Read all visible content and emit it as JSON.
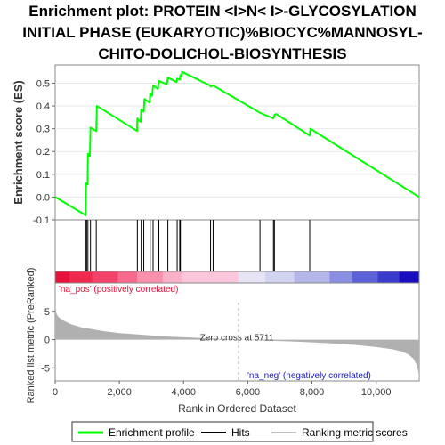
{
  "title_lines": [
    "Enrichment plot: PROTEIN <I>N< I>-GLYCOSYLATION",
    "INITIAL PHASE (EUKARYOTIC)%BIOCYC%MANNOSYL-",
    "CHITO-DOLICHOL-BIOSYNTHESIS"
  ],
  "chart_data": {
    "type": "line",
    "x_total": 11340,
    "es_panel": {
      "ylabel": "Enrichment score (ES)",
      "ylim": [
        -0.1,
        0.58
      ],
      "yticks": [
        -0.1,
        0.0,
        0.1,
        0.2,
        0.3,
        0.4,
        0.5
      ],
      "ytick_labels": [
        "-0.1",
        "0.0",
        "0.1",
        "0.2",
        "0.3",
        "0.4",
        "0.5"
      ],
      "line_color": "#00ff00",
      "points": [
        [
          0,
          0.0
        ],
        [
          950,
          -0.08
        ],
        [
          960,
          0.06
        ],
        [
          1010,
          0.055
        ],
        [
          1020,
          0.19
        ],
        [
          1080,
          0.18
        ],
        [
          1100,
          0.305
        ],
        [
          1280,
          0.29
        ],
        [
          1300,
          0.4
        ],
        [
          2550,
          0.29
        ],
        [
          2560,
          0.345
        ],
        [
          2660,
          0.33
        ],
        [
          2680,
          0.385
        ],
        [
          2760,
          0.375
        ],
        [
          2780,
          0.43
        ],
        [
          2940,
          0.415
        ],
        [
          2960,
          0.455
        ],
        [
          3020,
          0.445
        ],
        [
          3050,
          0.49
        ],
        [
          3200,
          0.475
        ],
        [
          3230,
          0.51
        ],
        [
          3480,
          0.495
        ],
        [
          3510,
          0.525
        ],
        [
          3780,
          0.505
        ],
        [
          3800,
          0.52
        ],
        [
          3880,
          0.515
        ],
        [
          3900,
          0.535
        ],
        [
          3930,
          0.53
        ],
        [
          3950,
          0.55
        ],
        [
          4820,
          0.49
        ],
        [
          4840,
          0.485
        ],
        [
          4920,
          0.49
        ],
        [
          6380,
          0.37
        ],
        [
          6800,
          0.345
        ],
        [
          6830,
          0.36
        ],
        [
          6880,
          0.365
        ],
        [
          7930,
          0.27
        ],
        [
          7950,
          0.3
        ],
        [
          11340,
          0.0
        ]
      ]
    },
    "hits_panel": {
      "hit_positions": [
        950,
        980,
        1020,
        1100,
        1280,
        2560,
        2680,
        2760,
        2960,
        3050,
        3230,
        3510,
        3800,
        3880,
        3900,
        3950,
        4840,
        4920,
        6380,
        6800,
        6830,
        7930
      ]
    },
    "ranked_bar": {
      "segments": [
        {
          "start": 0,
          "end": 450,
          "color": "#e8113a"
        },
        {
          "start": 450,
          "end": 1150,
          "color": "#f0294d"
        },
        {
          "start": 1150,
          "end": 1950,
          "color": "#f4436a"
        },
        {
          "start": 1950,
          "end": 2550,
          "color": "#f76a8d"
        },
        {
          "start": 2550,
          "end": 3350,
          "color": "#f991ad"
        },
        {
          "start": 3350,
          "end": 3950,
          "color": "#fab0c6"
        },
        {
          "start": 3950,
          "end": 5700,
          "color": "#fbc6dc"
        },
        {
          "start": 5700,
          "end": 6550,
          "color": "#e6e3f4"
        },
        {
          "start": 6550,
          "end": 7450,
          "color": "#d1d3f0"
        },
        {
          "start": 7450,
          "end": 8550,
          "color": "#b4b6ea"
        },
        {
          "start": 8550,
          "end": 9250,
          "color": "#8a8fe2"
        },
        {
          "start": 9250,
          "end": 10050,
          "color": "#5c62d8"
        },
        {
          "start": 10050,
          "end": 10720,
          "color": "#3a3ccd"
        },
        {
          "start": 10720,
          "end": 11340,
          "color": "#1a0fc0"
        }
      ]
    },
    "metric_panel": {
      "ylabel": "Ranked list metric (PreRanked)",
      "ylim": [
        -7.3,
        10.0
      ],
      "yticks": [
        -5,
        0,
        5
      ],
      "ytick_labels": [
        "-5",
        "0",
        "5"
      ],
      "fill_color": "#b0b0b0",
      "profile": [
        [
          0,
          6.3
        ],
        [
          40,
          4.6
        ],
        [
          100,
          4.0
        ],
        [
          250,
          3.4
        ],
        [
          500,
          2.7
        ],
        [
          800,
          2.2
        ],
        [
          1000,
          2.0
        ],
        [
          1500,
          1.5
        ],
        [
          2000,
          1.15
        ],
        [
          2500,
          0.95
        ],
        [
          3000,
          0.75
        ],
        [
          3500,
          0.55
        ],
        [
          4000,
          0.42
        ],
        [
          4500,
          0.3
        ],
        [
          5000,
          0.18
        ],
        [
          5711,
          0.0
        ],
        [
          6500,
          -0.15
        ],
        [
          7000,
          -0.25
        ],
        [
          7500,
          -0.35
        ],
        [
          8000,
          -0.48
        ],
        [
          8500,
          -0.62
        ],
        [
          9000,
          -0.8
        ],
        [
          9500,
          -1.0
        ],
        [
          10000,
          -1.3
        ],
        [
          10500,
          -1.7
        ],
        [
          10800,
          -2.1
        ],
        [
          11000,
          -2.6
        ],
        [
          11150,
          -3.3
        ],
        [
          11250,
          -4.3
        ],
        [
          11310,
          -5.5
        ],
        [
          11340,
          -7.0
        ]
      ],
      "zero_cross_label": "Zero cross at 5711",
      "zero_cross": 5711,
      "pos_label": "'na_pos' (positively correlated)",
      "neg_label": "'na_neg' (negatively correlated)",
      "xlabel": "Rank in Ordered Dataset",
      "xticks": [
        0,
        2000,
        4000,
        6000,
        8000,
        10000
      ],
      "xtick_labels": [
        "0",
        "2,000",
        "4,000",
        "6,000",
        "8,000",
        "10,000"
      ]
    },
    "legend": {
      "placement": "bottom",
      "items": [
        {
          "label": "Enrichment profile",
          "color": "#00ff00"
        },
        {
          "label": "Hits",
          "color": "#000000"
        },
        {
          "label": "Ranking metric scores",
          "color": "#c0c0c0"
        }
      ]
    }
  }
}
